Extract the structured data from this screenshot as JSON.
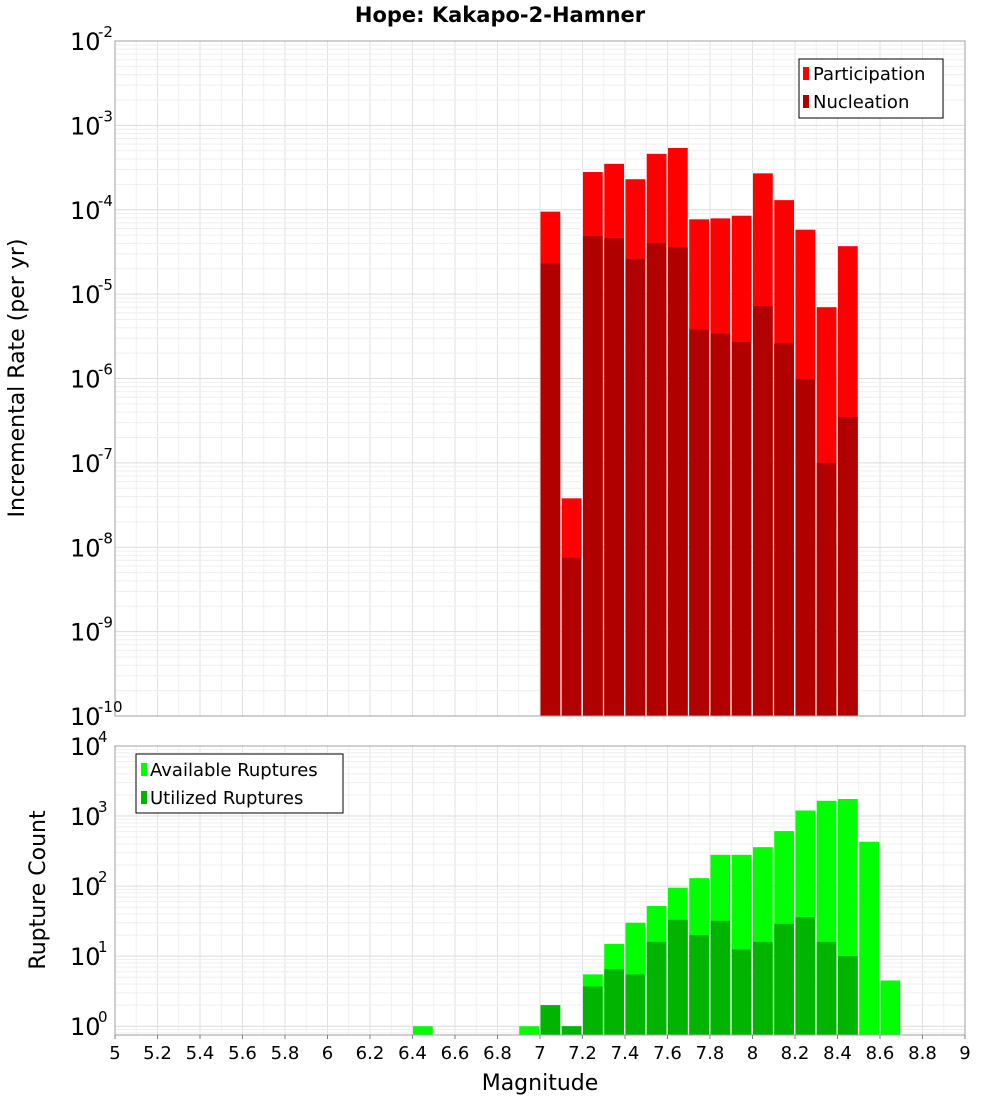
{
  "chart_data": [
    {
      "type": "bar",
      "title": "Hope: Kakapo-2-Hamner",
      "xlabel": "",
      "ylabel": "Incremental Rate (per yr)",
      "yscale": "log",
      "xlim": [
        5,
        9
      ],
      "ylim": [
        1e-10,
        0.01
      ],
      "grid": true,
      "legend_position": "top-right",
      "bar_width": 0.1,
      "y_ticks": [
        {
          "base": "10",
          "exp": "-10",
          "v": 1e-10
        },
        {
          "base": "10",
          "exp": "-9",
          "v": 1e-09
        },
        {
          "base": "10",
          "exp": "-8",
          "v": 1e-08
        },
        {
          "base": "10",
          "exp": "-7",
          "v": 1e-07
        },
        {
          "base": "10",
          "exp": "-6",
          "v": 1e-06
        },
        {
          "base": "10",
          "exp": "-5",
          "v": 1e-05
        },
        {
          "base": "10",
          "exp": "-4",
          "v": 0.0001
        },
        {
          "base": "10",
          "exp": "-3",
          "v": 0.001
        },
        {
          "base": "10",
          "exp": "-2",
          "v": 0.01
        }
      ],
      "x": [
        7.05,
        7.15,
        7.25,
        7.35,
        7.45,
        7.55,
        7.65,
        7.75,
        7.85,
        7.95,
        8.05,
        8.15,
        8.25,
        8.35,
        8.45
      ],
      "series": [
        {
          "name": "Participation",
          "color": "#ff0000",
          "values": [
            9.5e-05,
            3.8e-08,
            0.00028,
            0.00035,
            0.00023,
            0.00046,
            0.00054,
            7.7e-05,
            7.9e-05,
            8.5e-05,
            0.00027,
            0.00013,
            5.8e-05,
            7e-06,
            3.7e-05
          ]
        },
        {
          "name": "Nucleation",
          "color": "#b00000",
          "values": [
            2.3e-05,
            7.5e-09,
            4.9e-05,
            4.6e-05,
            2.6e-05,
            4e-05,
            3.6e-05,
            3.8e-06,
            3.4e-06,
            2.7e-06,
            7.2e-06,
            2.6e-06,
            9.8e-07,
            1e-07,
            3.5e-07
          ]
        }
      ]
    },
    {
      "type": "bar",
      "title": "",
      "xlabel": "Magnitude",
      "ylabel": "Rupture Count",
      "yscale": "log",
      "xlim": [
        5,
        9
      ],
      "ylim": [
        0.75,
        10000.0
      ],
      "grid": true,
      "legend_position": "top-left",
      "bar_width": 0.1,
      "y_ticks": [
        {
          "base": "10",
          "exp": "0",
          "v": 1
        },
        {
          "base": "10",
          "exp": "1",
          "v": 10
        },
        {
          "base": "10",
          "exp": "2",
          "v": 100
        },
        {
          "base": "10",
          "exp": "3",
          "v": 1000
        },
        {
          "base": "10",
          "exp": "4",
          "v": 10000
        }
      ],
      "x_ticks": [
        "5",
        "5.2",
        "5.4",
        "5.6",
        "5.8",
        "6",
        "6.2",
        "6.4",
        "6.6",
        "6.8",
        "7",
        "7.2",
        "7.4",
        "7.6",
        "7.8",
        "8",
        "8.2",
        "8.4",
        "8.6",
        "8.8",
        "9"
      ],
      "x": [
        6.45,
        6.95,
        7.05,
        7.15,
        7.25,
        7.35,
        7.45,
        7.55,
        7.65,
        7.75,
        7.85,
        7.95,
        8.05,
        8.15,
        8.25,
        8.35,
        8.45,
        8.55,
        8.65
      ],
      "series": [
        {
          "name": "Available Ruptures",
          "color": "#00ff00",
          "values": [
            1,
            1,
            2,
            1,
            5.5,
            15,
            30,
            52,
            95,
            130,
            280,
            280,
            360,
            610,
            1200,
            1650,
            1750,
            430,
            4.5
          ]
        },
        {
          "name": "Utilized Ruptures",
          "color": "#00b400",
          "values": [
            0,
            0,
            2,
            1,
            3.7,
            6.5,
            5.5,
            16,
            33,
            20,
            32,
            12.5,
            16,
            29,
            36,
            16,
            10,
            0,
            0
          ]
        }
      ]
    }
  ]
}
